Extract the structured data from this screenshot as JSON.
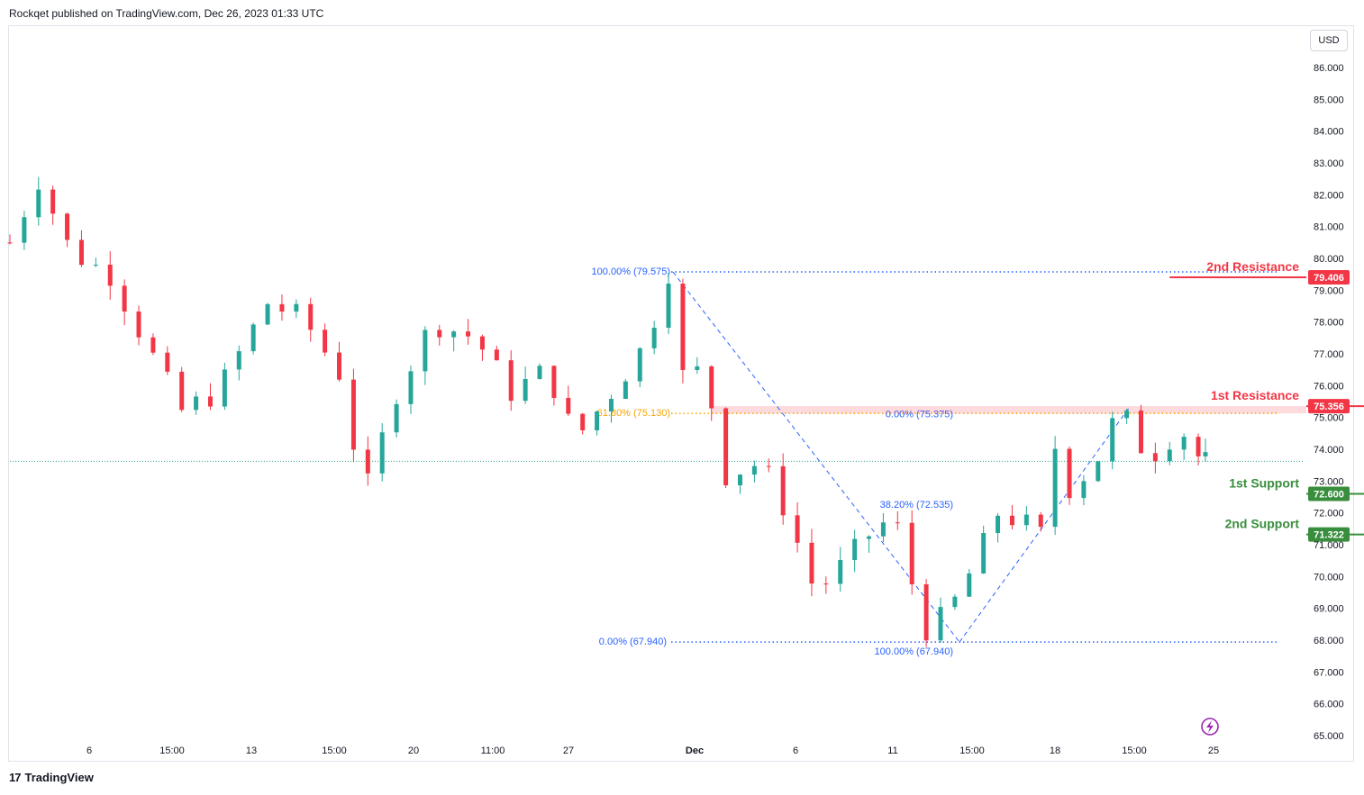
{
  "header": {
    "credit": "Rockqet published on TradingView.com, Dec 26, 2023 01:33 UTC"
  },
  "footer": {
    "brand": "TradingView",
    "brand_logo": "17"
  },
  "price_axis": {
    "currency": "USD"
  },
  "colors": {
    "up": "#26a69a",
    "down": "#f23645",
    "resistance": "#f23645",
    "support": "#388e3c",
    "fib": "#2962ff",
    "fib_mid": "#f7a600",
    "last_price": "#26a69a",
    "accent_icon": "#9c27b0"
  },
  "chart_data": {
    "type": "candlestick",
    "title": "",
    "ylim": [
      65,
      86.5
    ],
    "y_ticks": [
      "65.000",
      "66.000",
      "67.000",
      "68.000",
      "69.000",
      "70.000",
      "71.000",
      "72.000",
      "73.000",
      "74.000",
      "75.000",
      "76.000",
      "77.000",
      "78.000",
      "79.000",
      "80.000",
      "81.000",
      "82.000",
      "83.000",
      "84.000",
      "85.000",
      "86.000"
    ],
    "x_ticks": [
      {
        "label": "6",
        "i": 22
      },
      {
        "label": "15:00",
        "i": 45
      },
      {
        "label": "13",
        "i": 67
      },
      {
        "label": "15:00",
        "i": 90
      },
      {
        "label": "20",
        "i": 112
      },
      {
        "label": "11:00",
        "i": 134
      },
      {
        "label": "27",
        "i": 155
      },
      {
        "label": "Dec",
        "i": 190,
        "bold": true
      },
      {
        "label": "6",
        "i": 218
      },
      {
        "label": "11",
        "i": 245
      },
      {
        "label": "15:00",
        "i": 267
      },
      {
        "label": "18",
        "i": 290
      },
      {
        "label": "15:00",
        "i": 312
      },
      {
        "label": "25",
        "i": 334
      }
    ],
    "anchors": [
      [
        0,
        80.5
      ],
      [
        8,
        82.5
      ],
      [
        17,
        80.2
      ],
      [
        28,
        79.5
      ],
      [
        40,
        76.9
      ],
      [
        48,
        75.2
      ],
      [
        58,
        75.8
      ],
      [
        72,
        78.6
      ],
      [
        82,
        78.1
      ],
      [
        92,
        76.4
      ],
      [
        99,
        72.5
      ],
      [
        108,
        75.8
      ],
      [
        118,
        78.0
      ],
      [
        130,
        77.5
      ],
      [
        140,
        75.8
      ],
      [
        150,
        76.5
      ],
      [
        158,
        74.3
      ],
      [
        170,
        76.1
      ],
      [
        178,
        77.4
      ],
      [
        184,
        79.6
      ],
      [
        188,
        76.3
      ],
      [
        194,
        76.5
      ],
      [
        200,
        73.2
      ],
      [
        210,
        73.6
      ],
      [
        217,
        72.0
      ],
      [
        225,
        69.5
      ],
      [
        233,
        70.4
      ],
      [
        243,
        71.7
      ],
      [
        250,
        71.4
      ],
      [
        254,
        68.2
      ],
      [
        262,
        68.8
      ],
      [
        270,
        70.5
      ],
      [
        276,
        72.0
      ],
      [
        283,
        71.7
      ],
      [
        288,
        71.3
      ],
      [
        291,
        74.4
      ],
      [
        296,
        72.8
      ],
      [
        303,
        73.5
      ],
      [
        310,
        75.3
      ],
      [
        318,
        73.7
      ],
      [
        327,
        74.7
      ],
      [
        333,
        73.6
      ]
    ],
    "n_candles": 334,
    "levels": [
      {
        "name": "2nd Resistance",
        "price": 79.406,
        "label": "79.406",
        "type": "resistance",
        "from_i": 81
      },
      {
        "name": "1st Resistance",
        "price": 75.356,
        "label": "75.356",
        "type": "resistance",
        "from_i": 192
      },
      {
        "name": "1st Support",
        "price": 72.6,
        "label": "72.600",
        "type": "support",
        "from_i": 100
      },
      {
        "name": "2nd Support",
        "price": 71.322,
        "label": "71.322",
        "type": "support",
        "from_i": 280
      }
    ],
    "fib_annotations": [
      {
        "text": "100.00% (79.575)",
        "price": 79.575
      },
      {
        "text": "61.80% (75.130)",
        "price": 75.13
      },
      {
        "text": "0.00% (67.940)",
        "price": 67.94
      },
      {
        "text": "0.00% (75.375)",
        "price": 75.375
      },
      {
        "text": "38.20% (72.535)",
        "price": 72.535
      },
      {
        "text": "100.00% (67.940)",
        "price": 67.94
      }
    ],
    "last_price": 73.62
  }
}
